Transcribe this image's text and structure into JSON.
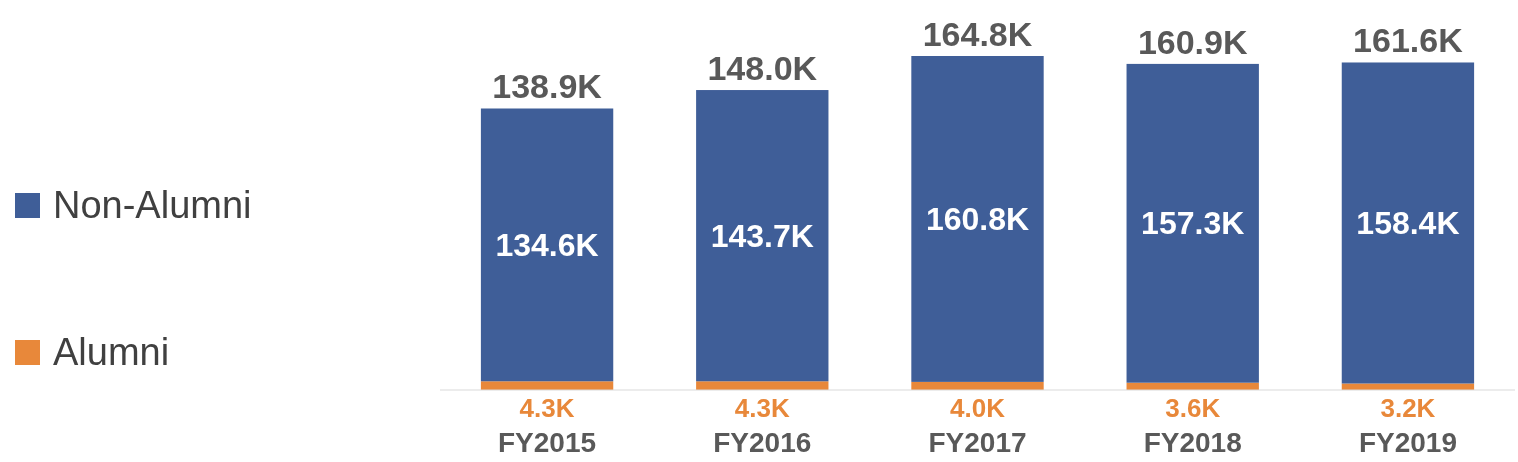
{
  "chart_data": {
    "type": "bar",
    "stacked": true,
    "categories": [
      "FY2015",
      "FY2016",
      "FY2017",
      "FY2018",
      "FY2019"
    ],
    "series": [
      {
        "name": "Alumni",
        "color": "#e8883a",
        "values": [
          4.3,
          4.3,
          4.0,
          3.6,
          3.2
        ],
        "value_labels": [
          "4.3K",
          "4.3K",
          "4.0K",
          "3.6K",
          "3.2K"
        ]
      },
      {
        "name": "Non-Alumni",
        "color": "#3f5e98",
        "values": [
          134.6,
          143.7,
          160.8,
          157.3,
          158.4
        ],
        "value_labels": [
          "134.6K",
          "143.7K",
          "160.8K",
          "157.3K",
          "158.4K"
        ]
      }
    ],
    "totals": [
      "138.9K",
      "148.0K",
      "164.8K",
      "160.9K",
      "161.6K"
    ],
    "legend": "left"
  }
}
